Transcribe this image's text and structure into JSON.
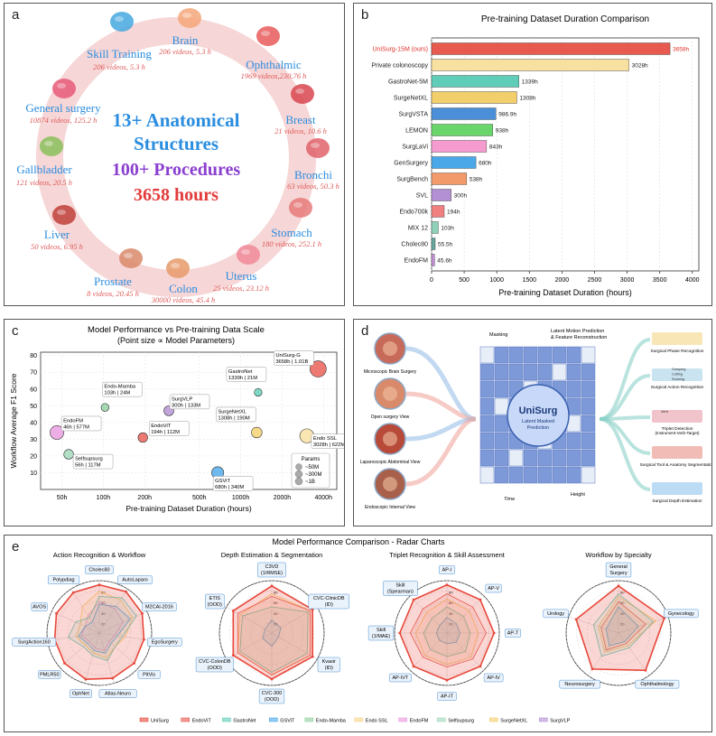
{
  "panel_a": {
    "label": "a",
    "center": {
      "line1": "13+ Anatomical",
      "line2": "Structures",
      "line3": "100+ Procedures",
      "line4": "3658 hours"
    },
    "structures": [
      {
        "name": "Brain",
        "stat": "206 videos, 5.3 h",
        "icon": "brain-icon"
      },
      {
        "name": "Ophthalmic",
        "stat": "1969 videos,230.76 h",
        "icon": "eye-icon"
      },
      {
        "name": "Breast",
        "stat": "21 videos,   10.6 h",
        "icon": "ribbon-icon"
      },
      {
        "name": "Bronchi",
        "stat": "63 videos, 50.3 h",
        "icon": "lungs-icon"
      },
      {
        "name": "Stomach",
        "stat": "180 videos, 252.1 h",
        "icon": "stomach-icon"
      },
      {
        "name": "Uterus",
        "stat": "25 videos, 23.12 h",
        "icon": "uterus-icon"
      },
      {
        "name": "Colon",
        "stat": "30000 videos, 45.4 h",
        "icon": "colon-icon"
      },
      {
        "name": "Prostate",
        "stat": "8 videos, 20.45 h",
        "icon": "prostate-icon"
      },
      {
        "name": "Liver",
        "stat": "50 videos, 6.95 h",
        "icon": "liver-icon"
      },
      {
        "name": "Gallbladder",
        "stat": "121 videos, 20.5 h",
        "icon": "gallbladder-icon"
      },
      {
        "name": "General surgery",
        "stat": "10874 videos, 125.2 h",
        "icon": "intestine-icon"
      },
      {
        "name": "Skill Training",
        "stat": "206 videos, 5.3 h",
        "icon": "training-icon"
      }
    ]
  },
  "panel_b": {
    "label": "b"
  },
  "panel_c": {
    "label": "c"
  },
  "panel_d": {
    "label": "d",
    "inputs": [
      "Microscopic Brain Surgery",
      "Open surgery View",
      "Laparoscopic Abdominal View",
      "Endoscopic Internal View"
    ],
    "cube_title": "UniSurg",
    "cube_sub1": "Latent Masked",
    "cube_sub2": "Prediction",
    "masking": "Masking",
    "latent_pred1": "Latent Motion Prediction",
    "latent_pred2": "& Feature Reconstruction",
    "time": "Time",
    "height": "Height",
    "outputs": [
      "Surgical Phase Recognition",
      "Surgical Action Recognition",
      "Triplet Detection",
      "Surgical Tool & Anatomy Segmentation",
      "Surgical Depth Estimation"
    ],
    "output_sub": "(Instrument-Verb-Target)",
    "vocab": [
      "Grasping",
      "Cutting",
      "Suturing",
      "Verb"
    ]
  },
  "panel_e": {
    "label": "e"
  },
  "chart_data": [
    {
      "type": "bar",
      "orientation": "horizontal",
      "title": "Pre-training Dataset Duration Comparison",
      "xlabel": "Pre-training Dataset Duration (hours)",
      "xlim": [
        0,
        4100
      ],
      "xticks": [
        0,
        500,
        1000,
        1500,
        2000,
        2500,
        3000,
        3500,
        4000
      ],
      "categories": [
        "UniSurg-15M (ours)",
        "Private colonoscopy",
        "GastroNet-5M",
        "SurgeNetXL",
        "SurgVSTA",
        "LEMON",
        "SurgLaVi",
        "GenSurgery",
        "SurgBench",
        "SVL",
        "Endo700k",
        "MIX 12",
        "Cholec80",
        "EndoFM"
      ],
      "values": [
        3658,
        3028,
        1339,
        1308,
        986.9,
        938,
        843,
        680,
        538,
        300,
        194,
        103,
        55.5,
        45.6
      ],
      "value_labels": [
        "3658h",
        "3028h",
        "1339h",
        "1308h",
        "986.9h",
        "938h",
        "843h",
        "680h",
        "538h",
        "300h",
        "194h",
        "103h",
        "55.5h",
        "45.6h"
      ],
      "colors": [
        "#e8594f",
        "#f7e0a0",
        "#5fcdb8",
        "#f3cf6b",
        "#4a8fd8",
        "#6ad56b",
        "#f59bd0",
        "#4aa8e8",
        "#f39a6b",
        "#b38fd3",
        "#f08080",
        "#8fd1b8",
        "#6aa8a0",
        "#c58fd8"
      ]
    },
    {
      "type": "scatter",
      "title": "Model Performance vs Pre-training Data Scale",
      "subtitle": "(Point size ∝ Model Parameters)",
      "xlabel": "Pre-training Dataset Duration (hours)",
      "ylabel": "Workflow Average F1 Score",
      "xscale": "log",
      "xlim": [
        35,
        5000
      ],
      "ylim": [
        0,
        82
      ],
      "xticks": [
        50,
        100,
        200,
        500,
        1000,
        2000,
        4000
      ],
      "xtick_labels": [
        "50h",
        "100h",
        "200h",
        "500h",
        "1000h",
        "2000h",
        "4000h"
      ],
      "yticks": [
        10,
        20,
        30,
        40,
        50,
        60,
        70,
        80
      ],
      "points": [
        {
          "name": "UniSurg-G",
          "info": "3658h | 1.01B",
          "x": 3658,
          "y": 72,
          "params_m": 1010,
          "color": "#e8594f"
        },
        {
          "name": "GastroNet",
          "info": "1339h | 21M",
          "x": 1339,
          "y": 58,
          "params_m": 21,
          "color": "#5fcdb8"
        },
        {
          "name": "Endo-Mamba",
          "info": "103h | 24M",
          "x": 103,
          "y": 49,
          "params_m": 24,
          "color": "#8fd1a0"
        },
        {
          "name": "SurgVLP",
          "info": "300h | 133M",
          "x": 300,
          "y": 47,
          "params_m": 133,
          "color": "#b38fd3"
        },
        {
          "name": "EndoFM",
          "info": "46h | 577M",
          "x": 46,
          "y": 34,
          "params_m": 577,
          "color": "#e89ae0"
        },
        {
          "name": "EndoViT",
          "info": "194h | 112M",
          "x": 194,
          "y": 31,
          "params_m": 112,
          "color": "#e8594f"
        },
        {
          "name": "SurgeNetXL",
          "info": "1308h | 190M",
          "x": 1308,
          "y": 34,
          "params_m": 190,
          "color": "#f3cf6b"
        },
        {
          "name": "Endo SSL",
          "info": "3028h | 622M",
          "x": 3028,
          "y": 32,
          "params_m": 622,
          "color": "#f7e0a0"
        },
        {
          "name": "Selfsupsurg",
          "info": "56h | 117M",
          "x": 56,
          "y": 21,
          "params_m": 117,
          "color": "#9fd8b8"
        },
        {
          "name": "GSViT",
          "info": "680h | 340M",
          "x": 680,
          "y": 10,
          "params_m": 340,
          "color": "#4aa8e8"
        }
      ],
      "size_legend": {
        "title": "Params",
        "items": [
          "~50M",
          "~300M",
          "~1B"
        ]
      }
    },
    {
      "type": "radar",
      "title": "Model Performance Comparison - Radar Charts",
      "rticks": [
        20,
        40,
        60,
        80,
        100
      ],
      "legend": [
        {
          "name": "UniSurg",
          "color": "#e8473a"
        },
        {
          "name": "EndoViT",
          "color": "#e8594f"
        },
        {
          "name": "GastroNet",
          "color": "#5fcdb8"
        },
        {
          "name": "GSViT",
          "color": "#4aa8e8"
        },
        {
          "name": "Endo-Mamba",
          "color": "#8fd1a0"
        },
        {
          "name": "Endo SSL",
          "color": "#f7d488"
        },
        {
          "name": "EndoFM",
          "color": "#e89ae0"
        },
        {
          "name": "Selfsupsurg",
          "color": "#9fd8b8"
        },
        {
          "name": "SurgeNetXL",
          "color": "#f3cf6b"
        },
        {
          "name": "SurgVLP",
          "color": "#b38fd3"
        }
      ],
      "charts": [
        {
          "title": "Action Recognition & Workflow",
          "axes": [
            "Cholec80",
            "AutoLaparo",
            "M2CAI-2016",
            "EgoSurgery",
            "PitVis",
            "Atlas-Neuro",
            "OphNet",
            "PMLR50",
            "SurgAction160",
            "AVOS",
            "Polypdiag"
          ],
          "series": [
            {
              "name": "UniSurg",
              "values": [
                92,
                94,
                90,
                86,
                88,
                90,
                92,
                88,
                86,
                90,
                92
              ]
            },
            {
              "name": "GastroNet",
              "values": [
                70,
                80,
                78,
                45,
                40,
                55,
                45,
                40,
                60,
                50,
                35
              ]
            },
            {
              "name": "GSViT",
              "values": [
                55,
                60,
                65,
                35,
                30,
                40,
                35,
                30,
                40,
                30,
                25
              ]
            },
            {
              "name": "SurgeNetXL",
              "values": [
                80,
                75,
                70,
                50,
                40,
                50,
                40,
                35,
                45,
                40,
                60
              ]
            },
            {
              "name": "EndoFM",
              "values": [
                60,
                55,
                50,
                30,
                25,
                35,
                30,
                25,
                35,
                30,
                40
              ]
            }
          ]
        },
        {
          "title": "Depth Estimation & Segmentation",
          "axes": [
            "C3VD\n(1/RMSE)",
            "CVC-ClinicDB\n(ID)",
            "Kvasir\n(ID)",
            "CVC-300\n(OOD)",
            "CVC-ColonDB\n(OOD)",
            "ETIS\n(OOD)"
          ],
          "series": [
            {
              "name": "UniSurg",
              "values": [
                90,
                90,
                90,
                88,
                85,
                85
              ]
            },
            {
              "name": "EndoViT",
              "values": [
                70,
                85,
                85,
                80,
                75,
                75
              ]
            },
            {
              "name": "SurgeNetXL",
              "values": [
                75,
                85,
                85,
                80,
                75,
                70
              ]
            },
            {
              "name": "GastroNet",
              "values": [
                50,
                80,
                78,
                75,
                70,
                65
              ]
            },
            {
              "name": "GSViT",
              "values": [
                25,
                20,
                15,
                25,
                20,
                15
              ]
            }
          ]
        },
        {
          "title": "Triplet Recognition & Skill Assessment",
          "axes": [
            "AP-I",
            "AP-V",
            "AP-T",
            "AP-IV",
            "AP-IT",
            "AP-IVT",
            "Skill\n(1/MAE)",
            "Skill\n(Spearman)"
          ],
          "series": [
            {
              "name": "UniSurg",
              "values": [
                92,
                90,
                90,
                90,
                90,
                90,
                90,
                90
              ]
            },
            {
              "name": "EndoViT",
              "values": [
                75,
                70,
                75,
                70,
                65,
                65,
                70,
                65
              ]
            },
            {
              "name": "SurgeNetXL",
              "values": [
                65,
                60,
                60,
                65,
                60,
                60,
                60,
                55
              ]
            },
            {
              "name": "GastroNet",
              "values": [
                50,
                45,
                45,
                50,
                45,
                45,
                45,
                40
              ]
            },
            {
              "name": "GSViT",
              "values": [
                30,
                25,
                25,
                25,
                20,
                20,
                20,
                20
              ]
            }
          ]
        },
        {
          "title": "Workflow by Specialty",
          "axes": [
            "General\nSurgery",
            "Gynecology",
            "Ophthalmology",
            "Neurosurgery",
            "Urology"
          ],
          "series": [
            {
              "name": "UniSurg",
              "values": [
                90,
                92,
                88,
                85,
                85
              ]
            },
            {
              "name": "GastroNet",
              "values": [
                75,
                70,
                35,
                55,
                50
              ]
            },
            {
              "name": "SurgeNetXL",
              "values": [
                70,
                75,
                30,
                45,
                40
              ]
            },
            {
              "name": "GSViT",
              "values": [
                50,
                40,
                20,
                30,
                25
              ]
            },
            {
              "name": "EndoViT",
              "values": [
                60,
                55,
                25,
                40,
                35
              ]
            }
          ]
        }
      ]
    }
  ]
}
